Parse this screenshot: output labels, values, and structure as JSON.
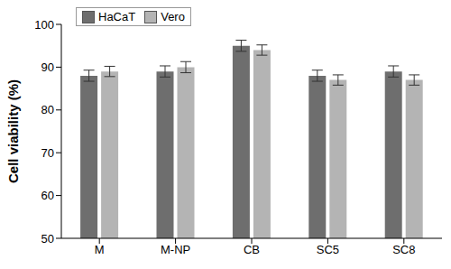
{
  "chart_data": {
    "type": "bar",
    "y_label": "Cell viability (%)",
    "categories": [
      "M",
      "M-NP",
      "CB",
      "SC5",
      "SC8"
    ],
    "series": [
      {
        "name": "HaCaT",
        "color": "#6e6e6e",
        "values": [
          88,
          89,
          95,
          88,
          89
        ],
        "errors": [
          1.3,
          1.3,
          1.3,
          1.3,
          1.3
        ]
      },
      {
        "name": "Vero",
        "color": "#b4b4b4",
        "values": [
          89,
          90,
          94,
          87,
          87
        ],
        "errors": [
          1.2,
          1.3,
          1.2,
          1.2,
          1.2
        ]
      }
    ],
    "ylim": [
      50,
      100
    ],
    "yticks": [
      50,
      60,
      70,
      80,
      90,
      100
    ],
    "grid": false,
    "legend": "upper left"
  }
}
